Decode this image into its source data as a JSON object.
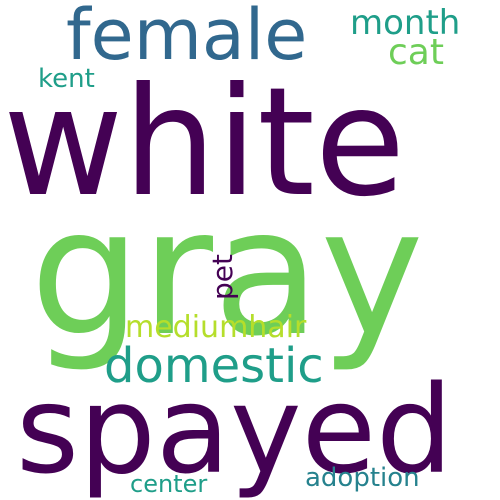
{
  "words": {
    "white": {
      "text": "white",
      "color": "#440154"
    },
    "gray": {
      "text": "gray",
      "color": "#6ece58"
    },
    "spayed": {
      "text": "spayed",
      "color": "#440154"
    },
    "female": {
      "text": "female",
      "color": "#31688e"
    },
    "domestic": {
      "text": "domestic",
      "color": "#1f9e89"
    },
    "mediumhair": {
      "text": "mediumhair",
      "color": "#b5de2b"
    },
    "month": {
      "text": "month",
      "color": "#1f9e89"
    },
    "cat": {
      "text": "cat",
      "color": "#6ece58"
    },
    "kent": {
      "text": "kent",
      "color": "#1f9e89"
    },
    "pet": {
      "text": "pet",
      "color": "#440154"
    },
    "adoption": {
      "text": "adoption",
      "color": "#26828e"
    },
    "center": {
      "text": "center",
      "color": "#1f9e89"
    }
  }
}
